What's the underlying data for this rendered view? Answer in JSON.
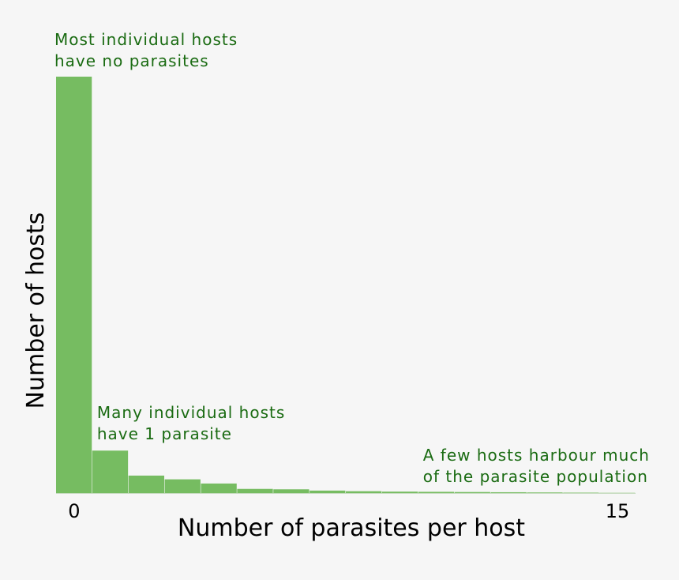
{
  "chart_data": {
    "type": "bar",
    "title": "",
    "xlabel": "Number of parasites per host",
    "ylabel": "Number of hosts",
    "categories": [
      "0",
      "1",
      "2",
      "3",
      "4",
      "5",
      "6",
      "7",
      "8",
      "9",
      "10",
      "11",
      "12",
      "13",
      "14",
      "15"
    ],
    "values": [
      100,
      10.2,
      4.2,
      3.3,
      2.3,
      1.0,
      0.9,
      0.6,
      0.45,
      0.35,
      0.3,
      0.25,
      0.2,
      0.15,
      0.1,
      0.05
    ],
    "ylim": [
      0,
      100
    ],
    "x_tick_labels": [
      {
        "category": "0",
        "label": "0"
      },
      {
        "category": "15",
        "label": "15"
      }
    ],
    "grid": false,
    "bar_color": "#76bc61",
    "annotations": [
      {
        "lines": [
          "Most individual hosts",
          "have no parasites"
        ],
        "category": "0"
      },
      {
        "lines": [
          "Many individual hosts",
          "have 1 parasite"
        ],
        "category": "1"
      },
      {
        "lines": [
          "A few hosts harbour much",
          "of the parasite population"
        ],
        "category": "10"
      }
    ]
  }
}
